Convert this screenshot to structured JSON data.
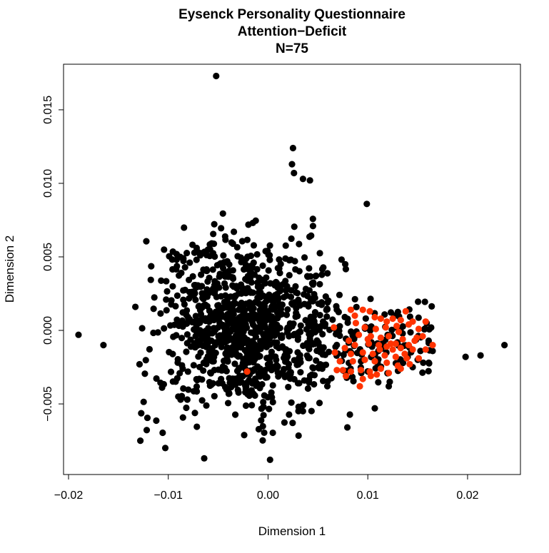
{
  "chart_data": {
    "type": "scatter",
    "title": [
      "Eysenck Personality Questionnaire",
      "Attention−Deficit",
      "N=75"
    ],
    "xlabel": "Dimension 1",
    "ylabel": "Dimension 2",
    "xlim": [
      -0.0205,
      0.0253
    ],
    "ylim": [
      -0.0098,
      0.0181
    ],
    "x_ticks": [
      -0.02,
      -0.01,
      0.0,
      0.01,
      0.02
    ],
    "x_tick_labels": [
      "−0.02",
      "−0.01",
      "0.00",
      "0.01",
      "0.02"
    ],
    "y_ticks": [
      -0.005,
      0.0,
      0.005,
      0.01,
      0.015
    ],
    "y_tick_labels": [
      "−0.005",
      "0.000",
      "0.005",
      "0.010",
      "0.015"
    ],
    "grid": false,
    "legend": "none",
    "colors": {
      "background": "#000000",
      "highlight": "#ff3300"
    },
    "series": [
      {
        "color": "#000000",
        "values": [
          [
            -0.0052,
            0.0173
          ],
          [
            0.0025,
            0.0124
          ],
          [
            0.0024,
            0.0113
          ],
          [
            0.0026,
            0.0107
          ],
          [
            0.0035,
            0.0103
          ],
          [
            0.0042,
            0.0102
          ],
          [
            0.0099,
            0.0086
          ],
          [
            -0.019,
            -0.0003
          ],
          [
            -0.0165,
            -0.001
          ],
          [
            -0.0133,
            0.0016
          ],
          [
            -0.0128,
            -0.0075
          ],
          [
            -0.0103,
            -0.008
          ],
          [
            -0.0064,
            -0.0087
          ],
          [
            0.0002,
            -0.0088
          ],
          [
            0.0107,
            -0.0053
          ],
          [
            0.0198,
            -0.0018
          ],
          [
            0.0213,
            -0.0017
          ],
          [
            0.0237,
            -0.001
          ],
          [
            0.0165,
            -0.0014
          ],
          [
            0.0159,
            0.0005
          ],
          [
            0.0161,
            -0.0007
          ],
          [
            0.015,
            -0.002
          ],
          [
            0.0145,
            -0.0025
          ],
          [
            0.0122,
            -0.0035
          ],
          [
            0.0121,
            -0.0038
          ]
        ],
        "cloud": {
          "count": 1000,
          "center": [
            -0.0025,
            0.0003
          ],
          "spread": [
            0.0045,
            0.003
          ]
        },
        "tail": {
          "count": 140,
          "x_range": [
            0.004,
            0.0165
          ],
          "y_center": -0.0008,
          "y_spread": 0.0016
        }
      },
      {
        "color": "#ff3300",
        "values": [
          [
            0.0083,
            0.0014
          ],
          [
            0.0095,
            0.0014
          ],
          [
            0.0087,
            0.001
          ],
          [
            0.0102,
            0.0013
          ],
          [
            0.0107,
            0.0009
          ],
          [
            0.0113,
            0.0008
          ],
          [
            0.0119,
            0.0006
          ],
          [
            0.0125,
            0.0008
          ],
          [
            0.0133,
            0.0007
          ],
          [
            0.0138,
            0.0013
          ],
          [
            0.0145,
            0.0006
          ],
          [
            0.0158,
            0.0006
          ],
          [
            0.0151,
            0.0001
          ],
          [
            0.0141,
            0.0004
          ],
          [
            0.0129,
            0.0003
          ],
          [
            0.0118,
            0.0002
          ],
          [
            0.0108,
            0.0001
          ],
          [
            0.0097,
            0.0002
          ],
          [
            0.0066,
            0.0002
          ],
          [
            0.0091,
            -0.0003
          ],
          [
            0.0103,
            -0.0004
          ],
          [
            0.0113,
            -0.0005
          ],
          [
            0.0121,
            -0.0004
          ],
          [
            0.0135,
            -0.0006
          ],
          [
            0.0147,
            -0.0007
          ],
          [
            0.0165,
            -0.001
          ],
          [
            0.0158,
            -0.0013
          ],
          [
            0.0145,
            -0.0013
          ],
          [
            0.0133,
            -0.0012
          ],
          [
            0.0123,
            -0.0009
          ],
          [
            0.0111,
            -0.001
          ],
          [
            0.0101,
            -0.0009
          ],
          [
            0.0087,
            -0.001
          ],
          [
            0.0077,
            -0.0012
          ],
          [
            0.0067,
            -0.0015
          ],
          [
            0.0083,
            -0.0016
          ],
          [
            0.0095,
            -0.0015
          ],
          [
            0.0105,
            -0.0016
          ],
          [
            0.0117,
            -0.0017
          ],
          [
            0.0128,
            -0.0018
          ],
          [
            0.0139,
            -0.0019
          ],
          [
            0.0151,
            -0.0019
          ],
          [
            0.0142,
            -0.0023
          ],
          [
            0.013,
            -0.0024
          ],
          [
            0.0119,
            -0.0022
          ],
          [
            0.0107,
            -0.0021
          ],
          [
            0.0097,
            -0.002
          ],
          [
            0.0085,
            -0.0021
          ],
          [
            0.0072,
            -0.0021
          ],
          [
            0.0075,
            -0.0027
          ],
          [
            0.0083,
            -0.0028
          ],
          [
            0.0093,
            -0.0027
          ],
          [
            0.0102,
            -0.0028
          ],
          [
            0.0113,
            -0.0026
          ],
          [
            0.0121,
            -0.0029
          ],
          [
            0.0133,
            -0.0026
          ],
          [
            0.0095,
            -0.0033
          ],
          [
            0.0103,
            -0.0031
          ],
          [
            0.0092,
            -0.0038
          ],
          [
            0.0078,
            -0.0031
          ],
          [
            0.0069,
            -0.0027
          ],
          [
            0.0137,
            -0.0016
          ],
          [
            0.0149,
            -0.0005
          ],
          [
            0.0125,
            -0.0013
          ],
          [
            0.0112,
            -0.0013
          ],
          [
            0.01,
            -0.0006
          ],
          [
            0.0088,
            0.0005
          ],
          [
            0.0155,
            -0.0004
          ],
          [
            0.0131,
            -0.0001
          ],
          [
            0.0119,
            -0.0011
          ],
          [
            0.0081,
            -0.0007
          ],
          [
            0.0109,
            -0.003
          ],
          [
            0.0128,
            -0.0009
          ],
          [
            0.0141,
            -0.001
          ],
          [
            -0.0021,
            -0.0028
          ]
        ]
      }
    ]
  }
}
